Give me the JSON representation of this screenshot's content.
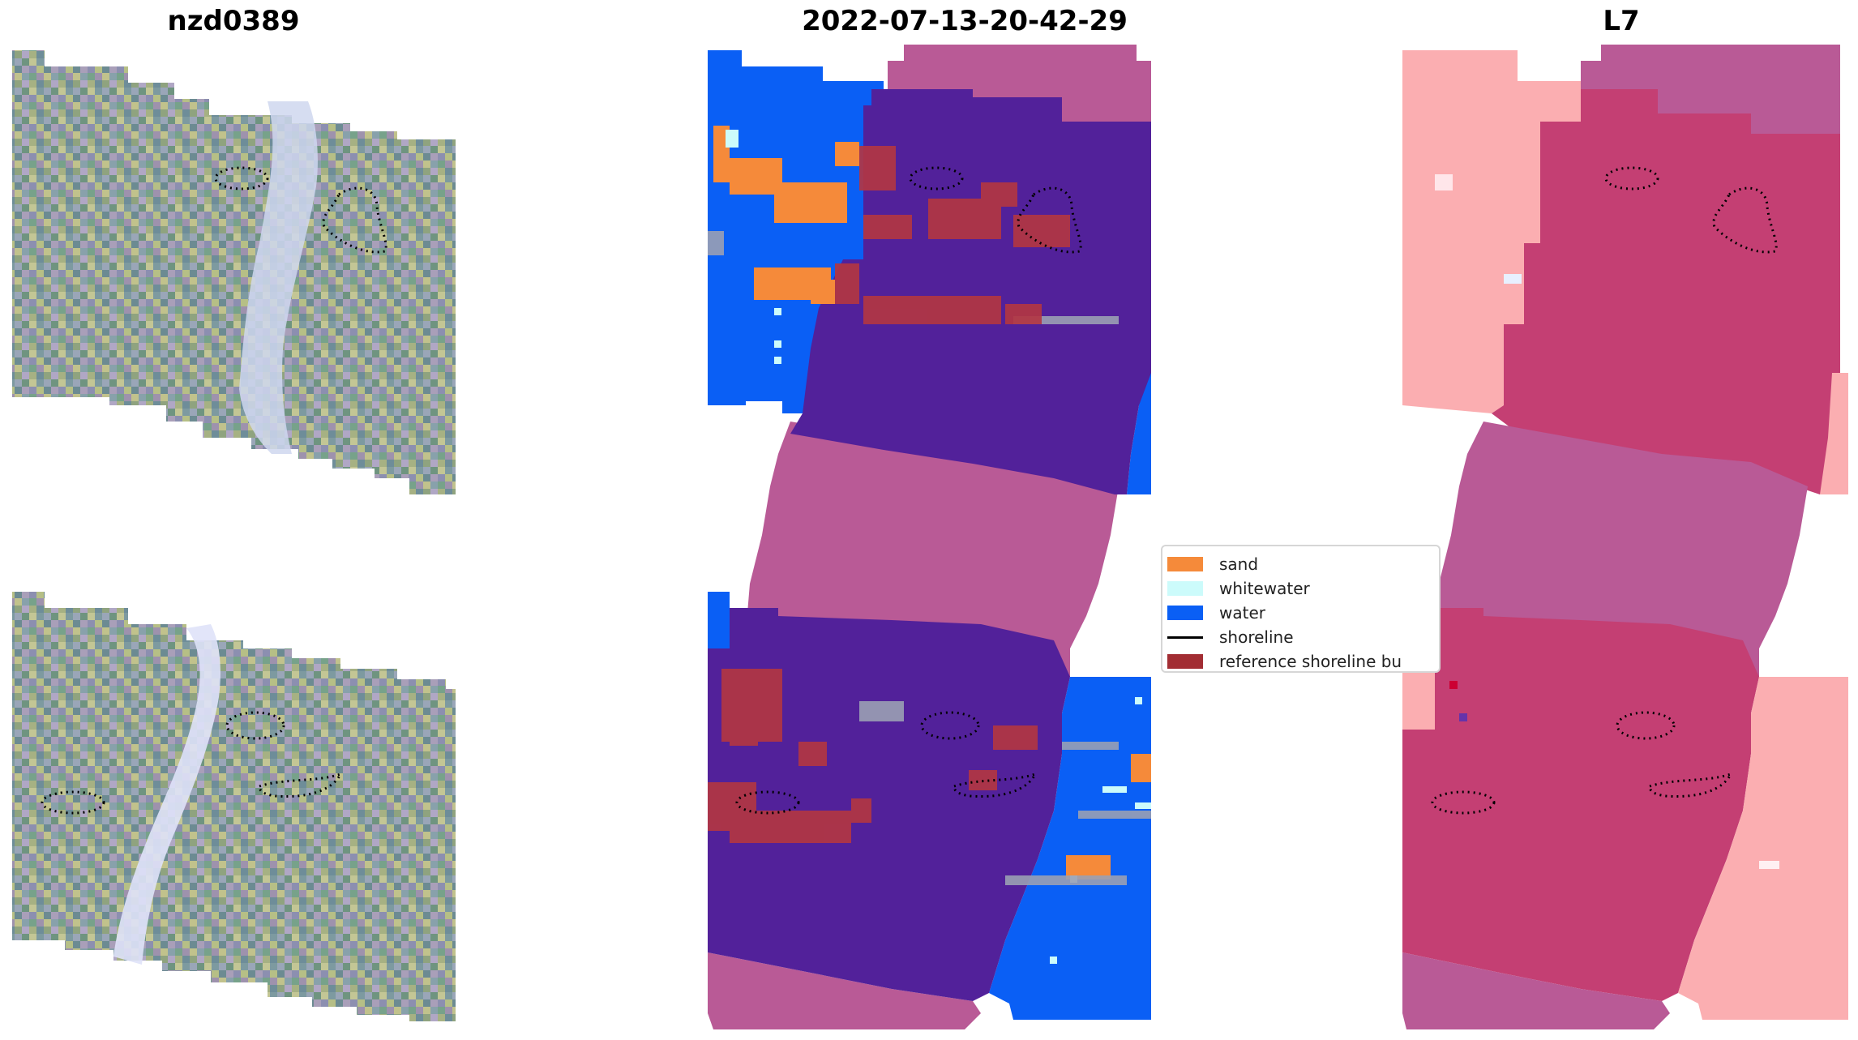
{
  "panels": {
    "rgb_title": "nzd0389",
    "classified_title": "2022-07-13-20-42-29",
    "mndwi_title": "L7"
  },
  "legend": {
    "items": [
      {
        "label": "sand",
        "kind": "patch",
        "color": "#f58a3a"
      },
      {
        "label": "whitewater",
        "kind": "patch",
        "color": "#ccfbfb"
      },
      {
        "label": "water",
        "kind": "patch",
        "color": "#0a5ff5"
      },
      {
        "label": "shoreline",
        "kind": "line",
        "color": "#000000"
      },
      {
        "label": "reference shoreline bu",
        "kind": "patch",
        "color": "#a22d33"
      }
    ]
  },
  "colors": {
    "no_data": "#b95a96",
    "other_land": "#52219a",
    "mndwi_land": "#c43f73",
    "mndwi_water": "#fbaeb1",
    "reference_buffer": "#b23643",
    "shoreline_contour": "#000000"
  }
}
